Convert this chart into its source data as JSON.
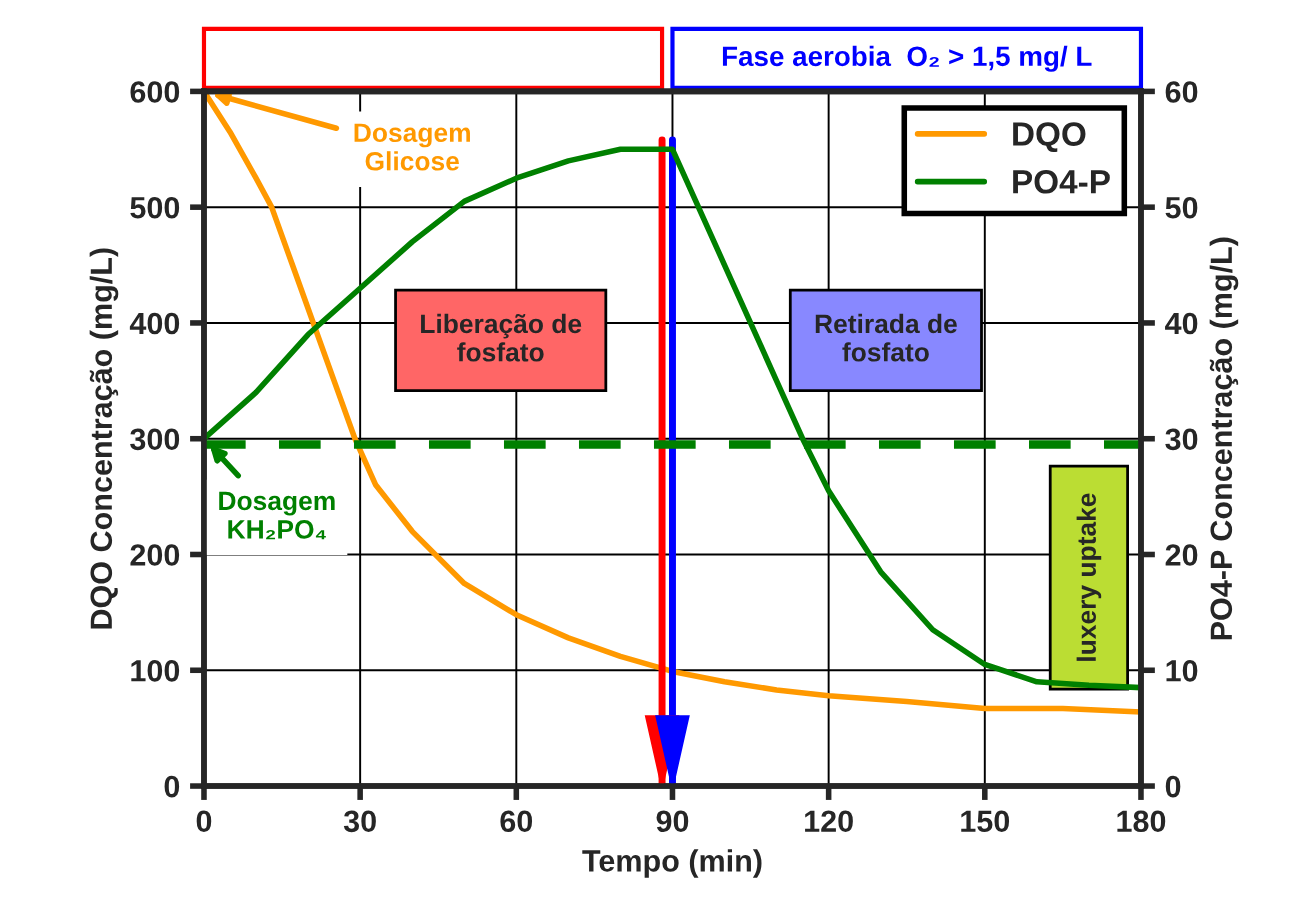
{
  "chart_data": {
    "type": "line",
    "xlabel": "Tempo (min)",
    "ylabel": "DQO Concentração (mg/L)",
    "y2label": "PO4-P Concentração (mg/L)",
    "xlim": [
      0,
      180
    ],
    "xticks": [
      0,
      30,
      60,
      90,
      120,
      150,
      180
    ],
    "ylim": [
      0,
      600
    ],
    "yticks": [
      0,
      100,
      200,
      300,
      400,
      500,
      600
    ],
    "y2lim": [
      0,
      60
    ],
    "y2ticks": [
      0,
      10,
      20,
      30,
      40,
      50,
      60
    ],
    "grid": true,
    "legend": "top right",
    "marker": "none",
    "line_style": "solid",
    "series": [
      {
        "name": "DQO",
        "color": "#ff9900",
        "x": [
          0,
          5,
          10,
          13,
          17,
          21,
          25,
          29,
          33,
          40,
          50,
          60,
          70,
          80,
          90,
          100,
          110,
          120,
          135,
          150,
          165,
          180
        ],
        "values": [
          600,
          565,
          525,
          500,
          450,
          400,
          350,
          300,
          260,
          220,
          175,
          148,
          128,
          112,
          99,
          90,
          83,
          78,
          73,
          67,
          67,
          64
        ]
      },
      {
        "name": "PO4-P",
        "color": "#008000",
        "axis": "y2",
        "x": [
          0,
          10,
          20,
          30,
          40,
          50,
          60,
          70,
          80,
          90,
          100,
          110,
          115,
          120,
          130,
          140,
          150,
          160,
          170,
          180
        ],
        "values": [
          30,
          34,
          39,
          43,
          47,
          50.5,
          52.5,
          54,
          55,
          55,
          45,
          35,
          30,
          25.5,
          18.5,
          13.5,
          10.5,
          9,
          8.7,
          8.5
        ]
      }
    ],
    "ref_lines": [
      {
        "axis": "y2",
        "value": 29.5,
        "color": "#008000",
        "line_style": "dashed"
      },
      {
        "axis": "x",
        "value": 88,
        "color": "#ff0000",
        "line_style": "solid"
      },
      {
        "axis": "x",
        "value": 90,
        "color": "#0000ff",
        "line_style": "solid"
      }
    ],
    "annotations": [
      {
        "text": "Dosagem\nGlicose",
        "x": 0,
        "y": 600
      },
      {
        "text": "Dosagem\nKH₂PO₄",
        "x": 0,
        "y": 300
      },
      "Liberação de\nfosfato",
      "Retirada de\nfosfato",
      "Fase aerobia  O₂ > 1,5 mg/ L",
      "luxery uptake"
    ]
  }
}
